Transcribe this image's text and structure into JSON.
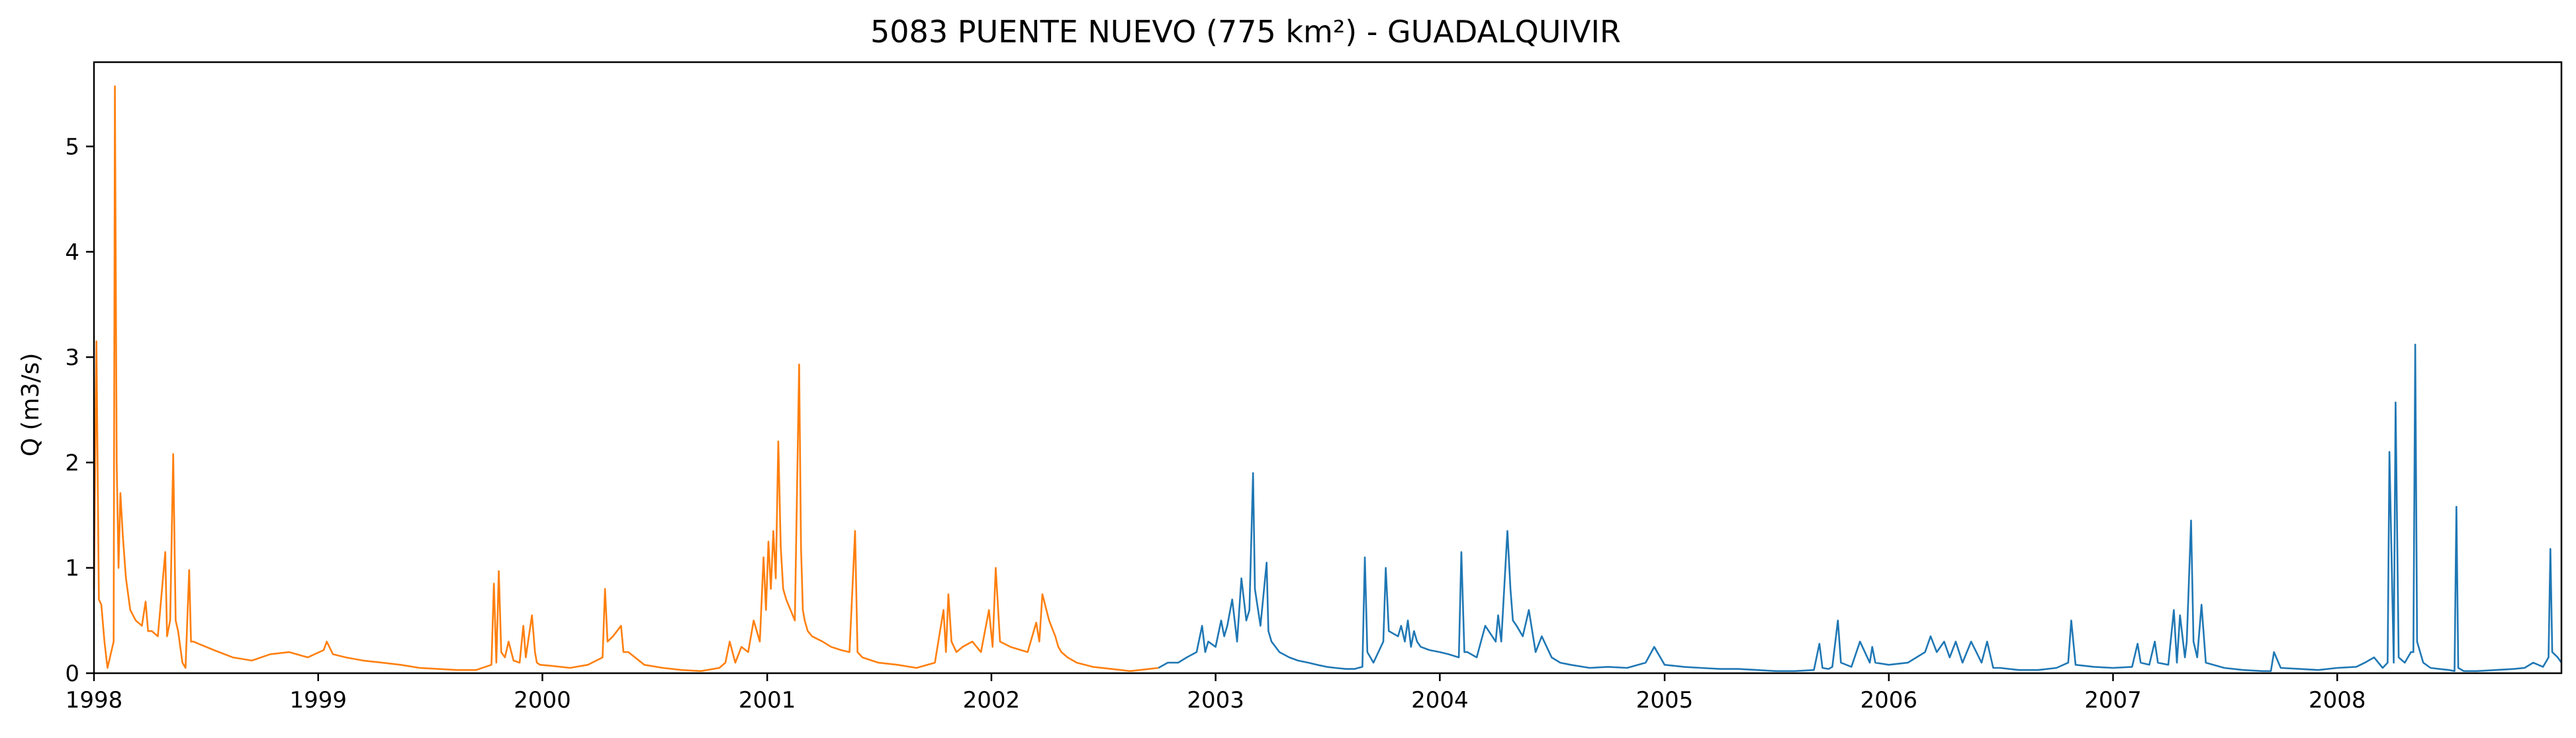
{
  "chart_data": {
    "type": "line",
    "title": "5083 PUENTE NUEVO (775 km²) - GUADALQUIVIR",
    "ylabel": "Q (m3/s)",
    "xlabel": "",
    "xlim": [
      "1998-01-01",
      "2008-12-31"
    ],
    "ylim": [
      0,
      5.8
    ],
    "grid": false,
    "x_ticks": [
      "1998",
      "1999",
      "2000",
      "2001",
      "2002",
      "2003",
      "2004",
      "2005",
      "2006",
      "2007",
      "2008"
    ],
    "y_ticks": [
      "0",
      "1",
      "2",
      "3",
      "4",
      "5"
    ],
    "series": [
      {
        "color": "#ff7f0e",
        "x": [
          "1998-01-01",
          "1998-01-05",
          "1998-01-09",
          "1998-01-13",
          "1998-01-18",
          "1998-01-23",
          "1998-02-02",
          "1998-02-04",
          "1998-02-07",
          "1998-02-10",
          "1998-02-13",
          "1998-02-17",
          "1998-02-22",
          "1998-03-01",
          "1998-03-10",
          "1998-03-20",
          "1998-03-26",
          "1998-03-30",
          "1998-04-05",
          "1998-04-15",
          "1998-04-27",
          "1998-04-30",
          "1998-05-05",
          "1998-05-10",
          "1998-05-14",
          "1998-05-18",
          "1998-05-25",
          "1998-05-30",
          "1998-06-05",
          "1998-06-08",
          "1998-06-12",
          "1998-06-20",
          "1998-07-15",
          "1998-08-15",
          "1998-09-15",
          "1998-10-15",
          "1998-11-15",
          "1998-12-15",
          "1999-01-10",
          "1999-01-15",
          "1999-01-25",
          "1999-02-15",
          "1999-03-15",
          "1999-04-15",
          "1999-05-15",
          "1999-06-15",
          "1999-07-15",
          "1999-08-15",
          "1999-09-15",
          "1999-10-10",
          "1999-10-14",
          "1999-10-18",
          "1999-10-22",
          "1999-10-26",
          "1999-11-01",
          "1999-11-07",
          "1999-11-15",
          "1999-11-25",
          "1999-12-01",
          "1999-12-05",
          "1999-12-15",
          "1999-12-20",
          "1999-12-23",
          "1999-12-28",
          "2000-01-15",
          "2000-02-15",
          "2000-03-15",
          "2000-04-08",
          "2000-04-12",
          "2000-04-16",
          "2000-04-25",
          "2000-05-08",
          "2000-05-12",
          "2000-05-20",
          "2000-06-15",
          "2000-07-15",
          "2000-08-15",
          "2000-09-15",
          "2000-10-15",
          "2000-10-25",
          "2000-11-01",
          "2000-11-10",
          "2000-11-20",
          "2000-12-01",
          "2000-12-10",
          "2000-12-20",
          "2000-12-26",
          "2000-12-30",
          "2001-01-03",
          "2001-01-07",
          "2001-01-11",
          "2001-01-15",
          "2001-01-19",
          "2001-01-23",
          "2001-01-27",
          "2001-02-01",
          "2001-02-08",
          "2001-02-15",
          "2001-02-22",
          "2001-02-25",
          "2001-02-28",
          "2001-03-03",
          "2001-03-08",
          "2001-03-15",
          "2001-04-01",
          "2001-04-15",
          "2001-05-01",
          "2001-05-15",
          "2001-05-24",
          "2001-05-28",
          "2001-06-05",
          "2001-07-01",
          "2001-08-01",
          "2001-09-01",
          "2001-10-01",
          "2001-10-15",
          "2001-10-19",
          "2001-10-23",
          "2001-10-28",
          "2001-11-05",
          "2001-11-15",
          "2001-12-01",
          "2001-12-15",
          "2001-12-28",
          "2002-01-03",
          "2002-01-08",
          "2002-01-15",
          "2002-02-01",
          "2002-03-01",
          "2002-03-15",
          "2002-03-20",
          "2002-03-25",
          "2002-04-05",
          "2002-04-15",
          "2002-04-20",
          "2002-04-25",
          "2002-05-05",
          "2002-05-20",
          "2002-06-15",
          "2002-07-15",
          "2002-08-15",
          "2002-09-15",
          "2002-09-30"
        ],
        "values": [
          0.8,
          3.15,
          0.7,
          0.65,
          0.3,
          0.05,
          0.3,
          5.57,
          2.0,
          1.0,
          1.71,
          1.3,
          0.9,
          0.6,
          0.5,
          0.45,
          0.68,
          0.4,
          0.4,
          0.35,
          1.15,
          0.35,
          0.5,
          2.08,
          0.5,
          0.4,
          0.1,
          0.05,
          0.98,
          0.3,
          0.3,
          0.28,
          0.22,
          0.15,
          0.12,
          0.18,
          0.2,
          0.15,
          0.22,
          0.3,
          0.18,
          0.15,
          0.12,
          0.1,
          0.08,
          0.05,
          0.04,
          0.03,
          0.03,
          0.08,
          0.85,
          0.1,
          0.97,
          0.2,
          0.15,
          0.3,
          0.12,
          0.1,
          0.45,
          0.15,
          0.55,
          0.2,
          0.1,
          0.08,
          0.07,
          0.05,
          0.08,
          0.15,
          0.8,
          0.3,
          0.35,
          0.45,
          0.2,
          0.2,
          0.08,
          0.05,
          0.03,
          0.02,
          0.05,
          0.1,
          0.3,
          0.1,
          0.25,
          0.2,
          0.5,
          0.3,
          1.1,
          0.6,
          1.25,
          0.8,
          1.35,
          0.9,
          2.2,
          1.2,
          0.8,
          0.7,
          0.6,
          0.5,
          2.93,
          1.2,
          0.6,
          0.5,
          0.4,
          0.35,
          0.3,
          0.25,
          0.22,
          0.2,
          1.35,
          0.2,
          0.15,
          0.1,
          0.08,
          0.05,
          0.1,
          0.6,
          0.2,
          0.75,
          0.3,
          0.2,
          0.25,
          0.3,
          0.2,
          0.6,
          0.25,
          1.0,
          0.3,
          0.25,
          0.2,
          0.48,
          0.3,
          0.75,
          0.5,
          0.35,
          0.25,
          0.2,
          0.15,
          0.1,
          0.06,
          0.04,
          0.02,
          0.04,
          0.05
        ]
      },
      {
        "color": "#1f77b4",
        "x": [
          "2002-09-30",
          "2002-10-15",
          "2002-11-01",
          "2002-11-15",
          "2002-12-01",
          "2002-12-10",
          "2002-12-15",
          "2002-12-20",
          "2003-01-01",
          "2003-01-10",
          "2003-01-15",
          "2003-01-20",
          "2003-01-28",
          "2003-02-05",
          "2003-02-12",
          "2003-02-20",
          "2003-02-25",
          "2003-03-03",
          "2003-03-06",
          "2003-03-15",
          "2003-03-25",
          "2003-03-28",
          "2003-04-02",
          "2003-04-15",
          "2003-05-01",
          "2003-05-15",
          "2003-06-01",
          "2003-06-15",
          "2003-07-01",
          "2003-07-15",
          "2003-08-01",
          "2003-08-15",
          "2003-08-28",
          "2003-09-01",
          "2003-09-05",
          "2003-09-15",
          "2003-10-01",
          "2003-10-05",
          "2003-10-10",
          "2003-10-25",
          "2003-10-30",
          "2003-11-05",
          "2003-11-10",
          "2003-11-15",
          "2003-11-20",
          "2003-11-25",
          "2003-12-01",
          "2003-12-15",
          "2004-01-01",
          "2004-01-15",
          "2004-02-01",
          "2004-02-05",
          "2004-02-10",
          "2004-02-15",
          "2004-03-01",
          "2004-03-15",
          "2004-04-01",
          "2004-04-05",
          "2004-04-10",
          "2004-04-20",
          "2004-04-25",
          "2004-04-29",
          "2004-05-05",
          "2004-05-15",
          "2004-05-25",
          "2004-06-05",
          "2004-06-15",
          "2004-07-01",
          "2004-07-15",
          "2004-08-01",
          "2004-09-01",
          "2004-10-01",
          "2004-11-01",
          "2004-12-01",
          "2004-12-15",
          "2005-01-01",
          "2005-02-01",
          "2005-03-01",
          "2005-04-01",
          "2005-05-01",
          "2005-06-01",
          "2005-07-01",
          "2005-08-01",
          "2005-09-01",
          "2005-09-10",
          "2005-09-15",
          "2005-09-25",
          "2005-10-01",
          "2005-10-10",
          "2005-10-15",
          "2005-11-01",
          "2005-11-15",
          "2005-12-01",
          "2005-12-05",
          "2005-12-10",
          "2006-01-01",
          "2006-02-01",
          "2006-03-01",
          "2006-03-10",
          "2006-03-20",
          "2006-04-01",
          "2006-04-10",
          "2006-04-20",
          "2006-05-01",
          "2006-05-15",
          "2006-06-01",
          "2006-06-10",
          "2006-06-20",
          "2006-07-01",
          "2006-08-01",
          "2006-09-01",
          "2006-10-01",
          "2006-10-20",
          "2006-10-25",
          "2006-11-01",
          "2006-12-01",
          "2007-01-01",
          "2007-02-01",
          "2007-02-10",
          "2007-02-15",
          "2007-03-01",
          "2007-03-10",
          "2007-03-15",
          "2007-04-01",
          "2007-04-10",
          "2007-04-15",
          "2007-04-20",
          "2007-04-28",
          "2007-05-01",
          "2007-05-08",
          "2007-05-12",
          "2007-05-18",
          "2007-05-25",
          "2007-06-01",
          "2007-07-01",
          "2007-08-01",
          "2007-09-01",
          "2007-09-15",
          "2007-09-20",
          "2007-10-01",
          "2007-11-01",
          "2007-12-01",
          "2008-01-01",
          "2008-02-01",
          "2008-02-15",
          "2008-03-01",
          "2008-03-15",
          "2008-03-23",
          "2008-03-26",
          "2008-04-02",
          "2008-04-05",
          "2008-04-10",
          "2008-04-20",
          "2008-04-30",
          "2008-05-04",
          "2008-05-07",
          "2008-05-10",
          "2008-05-20",
          "2008-06-01",
          "2008-06-15",
          "2008-07-01",
          "2008-07-10",
          "2008-07-13",
          "2008-07-16",
          "2008-07-25",
          "2008-08-15",
          "2008-09-15",
          "2008-10-15",
          "2008-11-01",
          "2008-11-15",
          "2008-12-01",
          "2008-12-10",
          "2008-12-13",
          "2008-12-16",
          "2008-12-25",
          "2008-12-31"
        ],
        "values": [
          0.05,
          0.1,
          0.1,
          0.15,
          0.2,
          0.45,
          0.2,
          0.3,
          0.25,
          0.5,
          0.35,
          0.45,
          0.7,
          0.3,
          0.9,
          0.5,
          0.6,
          1.9,
          0.8,
          0.45,
          1.05,
          0.4,
          0.3,
          0.2,
          0.15,
          0.12,
          0.1,
          0.08,
          0.06,
          0.05,
          0.04,
          0.04,
          0.06,
          1.1,
          0.2,
          0.1,
          0.3,
          1.0,
          0.4,
          0.35,
          0.45,
          0.3,
          0.5,
          0.25,
          0.4,
          0.3,
          0.25,
          0.22,
          0.2,
          0.18,
          0.15,
          1.15,
          0.2,
          0.2,
          0.15,
          0.45,
          0.3,
          0.55,
          0.3,
          1.35,
          0.8,
          0.5,
          0.45,
          0.35,
          0.6,
          0.2,
          0.35,
          0.15,
          0.1,
          0.08,
          0.05,
          0.06,
          0.05,
          0.1,
          0.25,
          0.08,
          0.06,
          0.05,
          0.04,
          0.04,
          0.03,
          0.02,
          0.02,
          0.03,
          0.28,
          0.05,
          0.04,
          0.06,
          0.5,
          0.1,
          0.06,
          0.3,
          0.1,
          0.25,
          0.1,
          0.08,
          0.1,
          0.2,
          0.35,
          0.2,
          0.3,
          0.15,
          0.3,
          0.1,
          0.3,
          0.1,
          0.3,
          0.05,
          0.05,
          0.03,
          0.03,
          0.05,
          0.1,
          0.5,
          0.08,
          0.06,
          0.05,
          0.06,
          0.28,
          0.1,
          0.08,
          0.3,
          0.1,
          0.08,
          0.6,
          0.1,
          0.55,
          0.15,
          0.3,
          1.45,
          0.3,
          0.15,
          0.65,
          0.1,
          0.05,
          0.03,
          0.02,
          0.02,
          0.2,
          0.05,
          0.04,
          0.03,
          0.05,
          0.06,
          0.1,
          0.15,
          0.05,
          0.1,
          2.1,
          0.1,
          2.57,
          0.15,
          0.1,
          0.2,
          0.2,
          3.12,
          0.3,
          0.1,
          0.05,
          0.04,
          0.03,
          0.02,
          1.58,
          0.05,
          0.02,
          0.02,
          0.03,
          0.04,
          0.05,
          0.1,
          0.06,
          0.15,
          1.18,
          0.2,
          0.15,
          0.1
        ]
      }
    ]
  }
}
